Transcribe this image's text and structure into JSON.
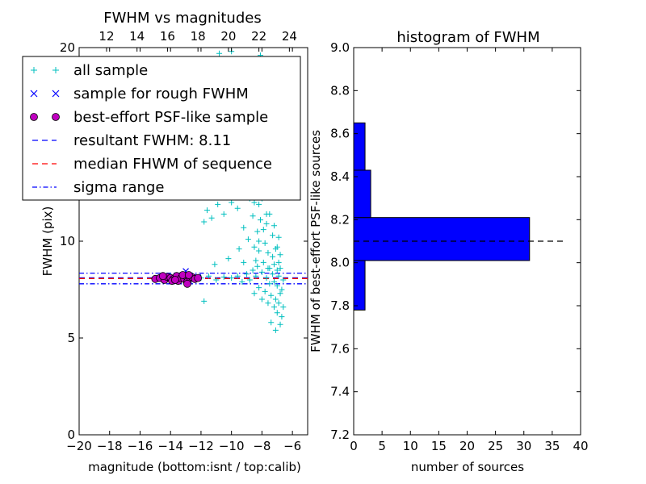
{
  "chart_data": [
    {
      "type": "scatter",
      "title": "FWHM vs magnitudes",
      "xlabel": "magnitude (bottom:isnt / top:calib)",
      "ylabel": "FWHM (pix)",
      "xlim": [
        -20,
        -5
      ],
      "ylim": [
        0,
        20
      ],
      "x_ticks": [
        -20,
        -18,
        -16,
        -14,
        -12,
        -10,
        -8,
        -6
      ],
      "x_tick_labels": [
        "−20",
        "−18",
        "−16",
        "−14",
        "−12",
        "−10",
        "−8",
        "−6"
      ],
      "y_ticks": [
        0,
        5,
        10,
        20
      ],
      "y_tick_labels": [
        "0",
        "5",
        "10",
        "20"
      ],
      "top_axis": {
        "xlim": [
          10.2,
          25.2
        ],
        "ticks": [
          12,
          14,
          16,
          18,
          20,
          22,
          24
        ],
        "tick_labels": [
          "12",
          "14",
          "16",
          "18",
          "20",
          "22",
          "24"
        ]
      },
      "legend": {
        "location": "upper left",
        "entries": [
          {
            "label": "all sample",
            "marker": "+",
            "color": "#00bfbf"
          },
          {
            "label": "sample for rough FWHM",
            "marker": "x",
            "color": "#0000ff"
          },
          {
            "label": "best-effort PSF-like sample",
            "marker": "o",
            "color": "#bf00bf"
          },
          {
            "label": "resultant FWHM: 8.11",
            "linestyle": "dashed",
            "color": "#0000ff"
          },
          {
            "label": "median FHWM of sequence",
            "linestyle": "dashed",
            "color": "#ff0000"
          },
          {
            "label": "sigma range",
            "linestyle": "dashdot",
            "color": "#0000ff"
          }
        ]
      },
      "series": [
        {
          "name": "all sample",
          "marker": "+",
          "color": "#00bfbf",
          "points": [
            [
              -14.5,
              8.1
            ],
            [
              -14.0,
              8.2
            ],
            [
              -13.7,
              8.0
            ],
            [
              -13.2,
              8.15
            ],
            [
              -12.8,
              8.1
            ],
            [
              -12.5,
              8.05
            ],
            [
              -12.0,
              8.1
            ],
            [
              -11.5,
              8.2
            ],
            [
              -11.0,
              8.0
            ],
            [
              -10.5,
              8.15
            ],
            [
              -10.0,
              8.1
            ],
            [
              -9.6,
              8.2
            ],
            [
              -9.3,
              7.9
            ],
            [
              -9.0,
              8.3
            ],
            [
              -8.8,
              8.0
            ],
            [
              -8.6,
              8.5
            ],
            [
              -8.4,
              8.2
            ],
            [
              -11.8,
              6.9
            ],
            [
              -11.1,
              8.8
            ],
            [
              -10.2,
              9.1
            ],
            [
              -9.5,
              9.6
            ],
            [
              -9.2,
              8.9
            ],
            [
              -11.8,
              11.0
            ],
            [
              -11.6,
              11.6
            ],
            [
              -11.3,
              11.2
            ],
            [
              -10.9,
              11.9
            ],
            [
              -10.5,
              11.4
            ],
            [
              -10.0,
              12.0
            ],
            [
              -9.6,
              11.7
            ],
            [
              -9.2,
              10.7
            ],
            [
              -8.9,
              10.1
            ],
            [
              -8.5,
              9.7
            ],
            [
              -8.2,
              10.0
            ],
            [
              -8.8,
              12.2
            ],
            [
              -8.5,
              12.0
            ],
            [
              -8.2,
              11.9
            ],
            [
              -8.0,
              12.2
            ],
            [
              -7.7,
              11.4
            ],
            [
              -7.4,
              12.3
            ],
            [
              -9.0,
              12.8
            ],
            [
              -8.6,
              11.3
            ],
            [
              -8.3,
              10.5
            ],
            [
              -8.1,
              11.1
            ],
            [
              -7.9,
              10.6
            ],
            [
              -7.7,
              10.9
            ],
            [
              -7.5,
              11.4
            ],
            [
              -7.3,
              10.3
            ],
            [
              -7.2,
              10.8
            ],
            [
              -7.0,
              9.7
            ],
            [
              -6.9,
              10.2
            ],
            [
              -6.8,
              9.3
            ],
            [
              -8.4,
              9.0
            ],
            [
              -8.2,
              9.5
            ],
            [
              -8.0,
              8.4
            ],
            [
              -7.8,
              9.9
            ],
            [
              -7.6,
              9.4
            ],
            [
              -7.5,
              8.6
            ],
            [
              -7.3,
              9.2
            ],
            [
              -7.2,
              8.8
            ],
            [
              -7.1,
              9.6
            ],
            [
              -7.0,
              8.5
            ],
            [
              -6.9,
              8.9
            ],
            [
              -6.8,
              8.6
            ],
            [
              -8.5,
              7.3
            ],
            [
              -8.2,
              7.6
            ],
            [
              -8.0,
              7.0
            ],
            [
              -7.8,
              7.4
            ],
            [
              -7.6,
              6.8
            ],
            [
              -7.4,
              7.2
            ],
            [
              -7.2,
              6.6
            ],
            [
              -7.1,
              7.0
            ],
            [
              -7.0,
              6.3
            ],
            [
              -6.9,
              6.8
            ],
            [
              -6.7,
              6.1
            ],
            [
              -6.6,
              6.6
            ],
            [
              -7.4,
              5.8
            ],
            [
              -7.1,
              5.4
            ],
            [
              -6.8,
              5.7
            ],
            [
              -8.3,
              8.7
            ],
            [
              -7.9,
              8.9
            ],
            [
              -7.7,
              8.1
            ],
            [
              -7.5,
              7.8
            ],
            [
              -7.3,
              8.3
            ],
            [
              -7.0,
              7.7
            ],
            [
              -6.9,
              8.2
            ],
            [
              -6.7,
              7.5
            ],
            [
              -6.6,
              8.0
            ],
            [
              -6.8,
              7.3
            ],
            [
              -7.2,
              7.9
            ],
            [
              -7.6,
              8.6
            ],
            [
              -10.8,
              19.7
            ],
            [
              -10.0,
              19.8
            ],
            [
              -8.1,
              19.6
            ],
            [
              -7.2,
              19.4
            ],
            [
              -9.6,
              17.5
            ],
            [
              -8.6,
              15.9
            ],
            [
              -7.6,
              16.3
            ],
            [
              -8.9,
              14.6
            ],
            [
              -8.0,
              14.2
            ],
            [
              -7.3,
              13.6
            ],
            [
              -7.0,
              12.9
            ],
            [
              -7.8,
              13.1
            ],
            [
              -8.3,
              13.4
            ],
            [
              -7.5,
              14.9
            ],
            [
              -6.9,
              14.0
            ],
            [
              -9.4,
              13.2
            ]
          ]
        },
        {
          "name": "sample for rough FWHM",
          "marker": "x",
          "color": "#0000ff",
          "points": [
            [
              -14.6,
              8.05
            ],
            [
              -14.1,
              8.15
            ],
            [
              -13.6,
              8.1
            ],
            [
              -13.3,
              8.2
            ],
            [
              -13.0,
              8.45
            ],
            [
              -12.8,
              8.0
            ],
            [
              -12.4,
              8.1
            ],
            [
              -13.9,
              8.0
            ],
            [
              -12.2,
              8.15
            ]
          ]
        },
        {
          "name": "best-effort PSF-like sample",
          "marker": "o",
          "color": "#bf00bf",
          "points": [
            [
              -15.0,
              8.05
            ],
            [
              -14.7,
              8.1
            ],
            [
              -14.4,
              8.0
            ],
            [
              -14.2,
              8.15
            ],
            [
              -14.0,
              8.1
            ],
            [
              -13.8,
              8.05
            ],
            [
              -13.6,
              8.2
            ],
            [
              -13.5,
              7.95
            ],
            [
              -13.3,
              8.1
            ],
            [
              -13.1,
              8.05
            ],
            [
              -13.0,
              8.2
            ],
            [
              -12.9,
              7.9
            ],
            [
              -12.7,
              8.1
            ],
            [
              -12.6,
              8.15
            ],
            [
              -12.4,
              8.05
            ],
            [
              -12.2,
              8.1
            ],
            [
              -12.9,
              7.8
            ],
            [
              -14.5,
              8.2
            ],
            [
              -13.9,
              7.95
            ],
            [
              -13.2,
              8.25
            ],
            [
              -12.8,
              8.25
            ],
            [
              -13.7,
              8.0
            ]
          ]
        }
      ],
      "hlines": [
        {
          "label": "resultant FWHM: 8.11",
          "y": 8.11,
          "color": "#0000ff",
          "linestyle": "dashed"
        },
        {
          "label": "median FHWM of sequence",
          "y": 8.07,
          "color": "#ff0000",
          "linestyle": "dashed"
        },
        {
          "label": "sigma range",
          "y": 8.35,
          "color": "#0000ff",
          "linestyle": "dashdot"
        },
        {
          "label": "sigma range",
          "y": 7.8,
          "color": "#0000ff",
          "linestyle": "dashdot"
        }
      ]
    },
    {
      "type": "bar",
      "orientation": "horizontal",
      "title": "histogram of FWHM",
      "xlabel": "number of sources",
      "ylabel": "FWHM of best-effort PSF-like sources",
      "xlim": [
        0,
        40
      ],
      "ylim": [
        7.2,
        9.0
      ],
      "x_ticks": [
        0,
        5,
        10,
        15,
        20,
        25,
        30,
        35,
        40
      ],
      "x_tick_labels": [
        "0",
        "5",
        "10",
        "15",
        "20",
        "25",
        "30",
        "35",
        "40"
      ],
      "y_ticks": [
        7.2,
        7.4,
        7.6,
        7.8,
        8.0,
        8.2,
        8.4,
        8.6,
        8.8,
        9.0
      ],
      "y_tick_labels": [
        "7.2",
        "7.4",
        "7.6",
        "7.8",
        "8.0",
        "8.2",
        "8.4",
        "8.6",
        "8.8",
        "9.0"
      ],
      "bar_color": "#0000ff",
      "bins": [
        {
          "y0": 7.78,
          "y1": 8.01,
          "count": 2
        },
        {
          "y0": 8.01,
          "y1": 8.21,
          "count": 31
        },
        {
          "y0": 8.21,
          "y1": 8.43,
          "count": 3
        },
        {
          "y0": 8.43,
          "y1": 8.65,
          "count": 2
        }
      ],
      "hline": {
        "y": 8.1,
        "xrange": [
          0,
          37
        ],
        "color": "#000000",
        "linestyle": "dashed"
      }
    }
  ]
}
